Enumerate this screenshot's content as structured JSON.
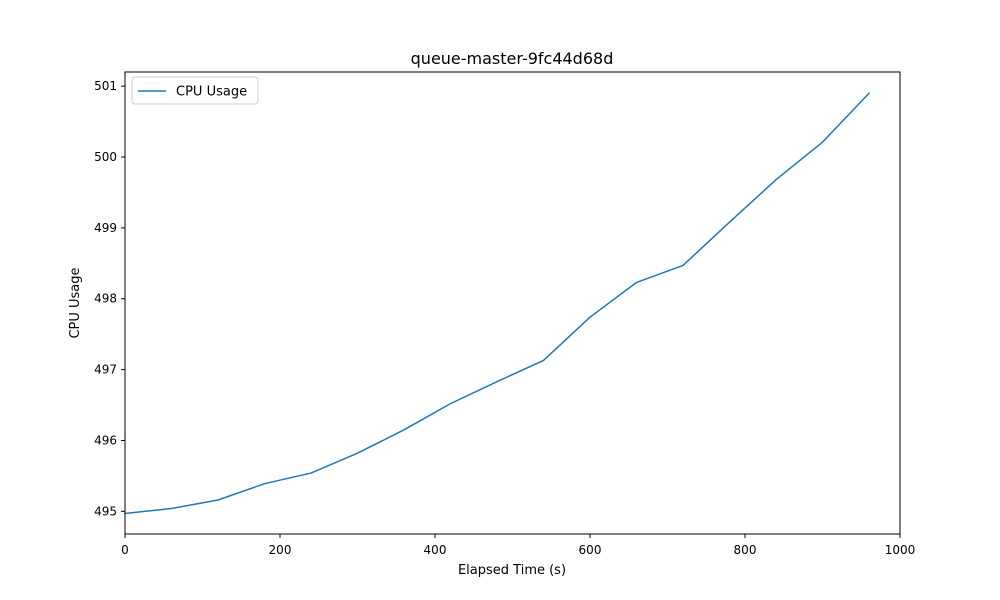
{
  "chart_data": {
    "type": "line",
    "title": "queue-master-9fc44d68d",
    "xlabel": "Elapsed Time (s)",
    "ylabel": "CPU Usage",
    "xlim": [
      0,
      1000
    ],
    "ylim": [
      494.68,
      501.2
    ],
    "xticks": [
      0,
      200,
      400,
      600,
      800,
      1000
    ],
    "yticks": [
      495,
      496,
      497,
      498,
      499,
      500,
      501
    ],
    "grid": false,
    "legend_position": "top-left",
    "series": [
      {
        "name": "CPU Usage",
        "color": "#1f77b4",
        "x": [
          0,
          60,
          120,
          180,
          240,
          300,
          360,
          420,
          480,
          540,
          600,
          660,
          720,
          780,
          840,
          900,
          960
        ],
        "y": [
          494.97,
          495.04,
          495.16,
          495.39,
          495.54,
          495.82,
          496.15,
          496.52,
          496.83,
          497.13,
          497.74,
          498.23,
          498.47,
          499.08,
          499.68,
          500.21,
          500.9
        ]
      }
    ]
  }
}
